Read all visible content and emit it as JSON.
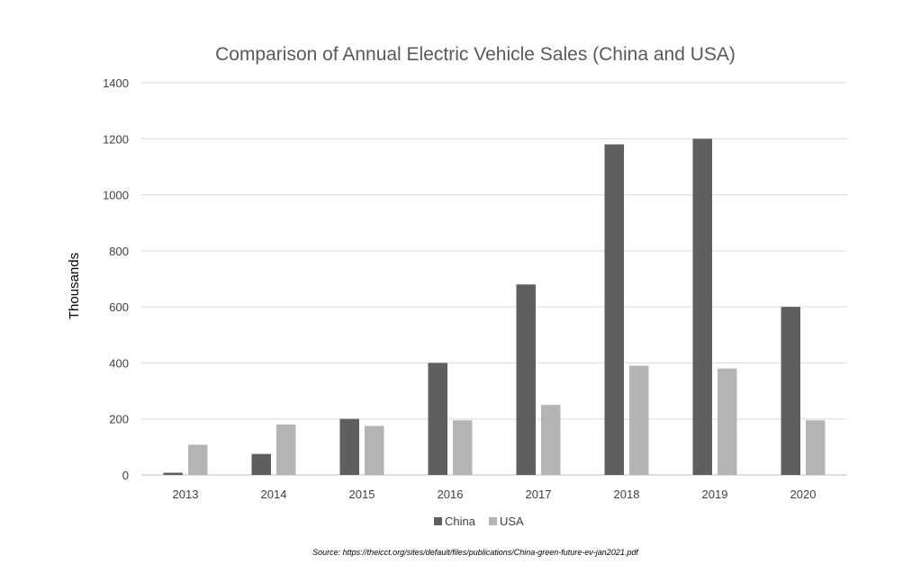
{
  "chart_data": {
    "type": "bar",
    "title": "Comparison of Annual Electric Vehicle Sales (China and USA)",
    "xlabel": "",
    "ylabel": "Thousands",
    "categories": [
      "2013",
      "2014",
      "2015",
      "2016",
      "2017",
      "2018",
      "2019",
      "2020"
    ],
    "series": [
      {
        "name": "China",
        "color": "#5f5f5f",
        "values": [
          8,
          75,
          200,
          400,
          680,
          1180,
          1200,
          600
        ]
      },
      {
        "name": "USA",
        "color": "#b4b4b4",
        "values": [
          108,
          180,
          175,
          195,
          250,
          390,
          380,
          195
        ]
      }
    ],
    "ylim": [
      0,
      1400
    ],
    "yticks": [
      "0",
      "200",
      "400",
      "600",
      "800",
      "1000",
      "1200",
      "1400"
    ],
    "grid": true,
    "legend_position": "bottom"
  },
  "source_note": "Source: https://theicct.org/sites/default/files/publications/China-green-future-ev-jan2021.pdf"
}
